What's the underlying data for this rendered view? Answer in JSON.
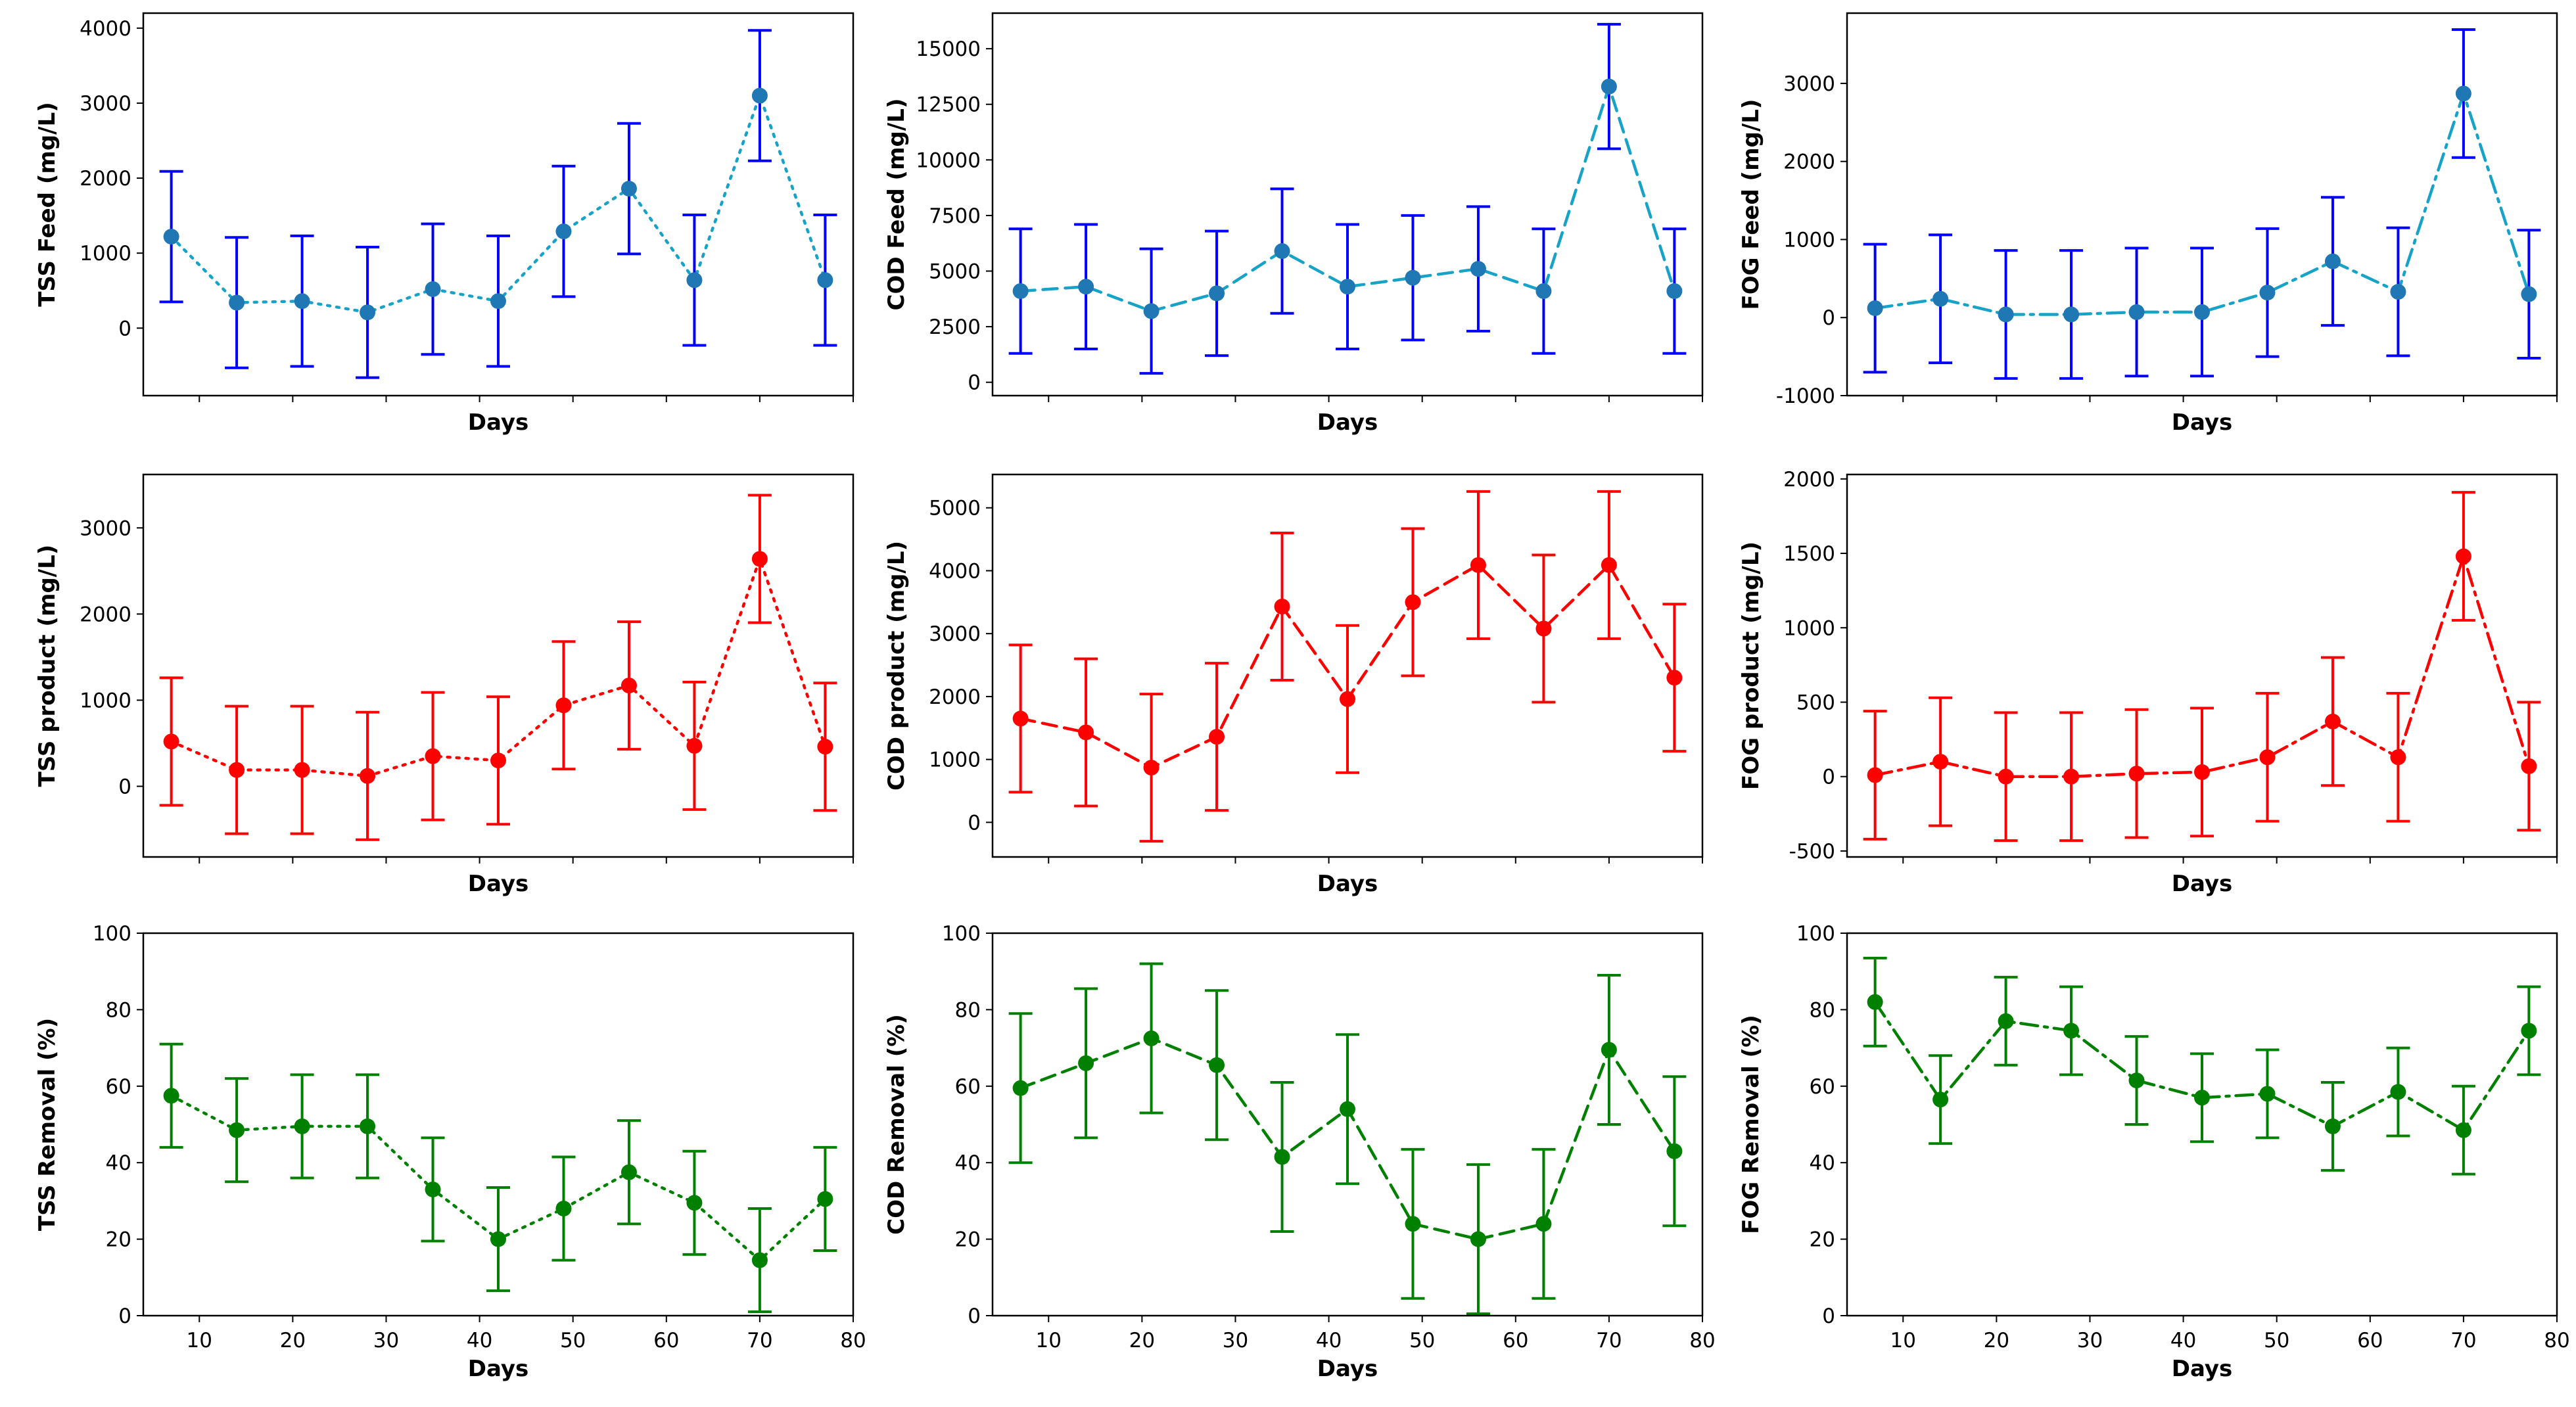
{
  "chart_data": [
    {
      "type": "line",
      "xlabel": "Days",
      "ylabel": "TSS Feed (mg/L)",
      "ylim": [
        -900,
        4200
      ],
      "yticks": [
        0,
        1000,
        2000,
        3000,
        4000
      ],
      "xlim": [
        4,
        80
      ],
      "xticks": [],
      "line_style": "dotted",
      "line_color": "#17a2c8",
      "marker_color": "#1f77b4",
      "errorbar_color": "#0000ff",
      "x": [
        7,
        14,
        21,
        28,
        35,
        42,
        49,
        56,
        63,
        70,
        77
      ],
      "y": [
        1220,
        340,
        360,
        210,
        520,
        360,
        1290,
        1860,
        640,
        3100,
        640
      ],
      "yerr": [
        870,
        870,
        870,
        870,
        870,
        870,
        870,
        870,
        870,
        870,
        870
      ]
    },
    {
      "type": "line",
      "xlabel": "Days",
      "ylabel": "COD Feed (mg/L)",
      "ylim": [
        -600,
        16600
      ],
      "yticks": [
        0,
        2500,
        5000,
        7500,
        10000,
        12500,
        15000
      ],
      "xlim": [
        4,
        80
      ],
      "xticks": [],
      "line_style": "dashed",
      "line_color": "#17a2c8",
      "marker_color": "#1f77b4",
      "errorbar_color": "#0000ff",
      "x": [
        7,
        14,
        21,
        28,
        35,
        42,
        49,
        56,
        63,
        70,
        77
      ],
      "y": [
        4100,
        4300,
        3200,
        4000,
        5900,
        4300,
        4700,
        5100,
        4100,
        13300,
        4100
      ],
      "yerr": [
        2800,
        2800,
        2800,
        2800,
        2800,
        2800,
        2800,
        2800,
        2800,
        2800,
        2800
      ]
    },
    {
      "type": "line",
      "xlabel": "Days",
      "ylabel": "FOG Feed (mg/L)",
      "ylim": [
        -1000,
        3900
      ],
      "yticks": [
        -1000,
        0,
        1000,
        2000,
        3000
      ],
      "xlim": [
        4,
        80
      ],
      "xticks": [],
      "line_style": "dashdot",
      "line_color": "#17a2c8",
      "marker_color": "#1f77b4",
      "errorbar_color": "#0000ff",
      "x": [
        7,
        14,
        21,
        28,
        35,
        42,
        49,
        56,
        63,
        70,
        77
      ],
      "y": [
        120,
        240,
        40,
        40,
        70,
        70,
        320,
        720,
        330,
        2870,
        300
      ],
      "yerr": [
        820,
        820,
        820,
        820,
        820,
        820,
        820,
        820,
        820,
        820,
        820
      ]
    },
    {
      "type": "line",
      "xlabel": "Days",
      "ylabel": "TSS product (mg/L)",
      "ylim": [
        -820,
        3620
      ],
      "yticks": [
        0,
        1000,
        2000,
        3000
      ],
      "xlim": [
        4,
        80
      ],
      "xticks": [],
      "line_style": "dotted",
      "line_color": "#ff0000",
      "marker_color": "#ff0000",
      "errorbar_color": "#ff0000",
      "x": [
        7,
        14,
        21,
        28,
        35,
        42,
        49,
        56,
        63,
        70,
        77
      ],
      "y": [
        520,
        190,
        190,
        120,
        350,
        300,
        940,
        1170,
        470,
        2640,
        460
      ],
      "yerr": [
        740,
        740,
        740,
        740,
        740,
        740,
        740,
        740,
        740,
        740,
        740
      ]
    },
    {
      "type": "line",
      "xlabel": "Days",
      "ylabel": "COD product (mg/L)",
      "ylim": [
        -550,
        5530
      ],
      "yticks": [
        0,
        1000,
        2000,
        3000,
        4000,
        5000
      ],
      "xlim": [
        4,
        80
      ],
      "xticks": [],
      "line_style": "dashed",
      "line_color": "#ff0000",
      "marker_color": "#ff0000",
      "errorbar_color": "#ff0000",
      "x": [
        7,
        14,
        21,
        28,
        35,
        42,
        49,
        56,
        63,
        70,
        77
      ],
      "y": [
        1650,
        1430,
        870,
        1360,
        3430,
        1960,
        3500,
        4090,
        3080,
        4090,
        2300
      ],
      "yerr": [
        1170,
        1170,
        1170,
        1170,
        1170,
        1170,
        1170,
        1170,
        1170,
        1170,
        1170
      ]
    },
    {
      "type": "line",
      "xlabel": "Days",
      "ylabel": "FOG product (mg/L)",
      "ylim": [
        -540,
        2030
      ],
      "yticks": [
        -500,
        0,
        500,
        1000,
        1500,
        2000
      ],
      "xlim": [
        4,
        80
      ],
      "xticks": [],
      "line_style": "dashdot",
      "line_color": "#ff0000",
      "marker_color": "#ff0000",
      "errorbar_color": "#ff0000",
      "x": [
        7,
        14,
        21,
        28,
        35,
        42,
        49,
        56,
        63,
        70,
        77
      ],
      "y": [
        10,
        100,
        0,
        0,
        20,
        30,
        130,
        370,
        130,
        1480,
        70
      ],
      "yerr": [
        430,
        430,
        430,
        430,
        430,
        430,
        430,
        430,
        430,
        430,
        430
      ]
    },
    {
      "type": "line",
      "xlabel": "Days",
      "ylabel": "TSS Removal (%)",
      "ylim": [
        0,
        100
      ],
      "yticks": [
        0,
        20,
        40,
        60,
        80,
        100
      ],
      "xlim": [
        4,
        80
      ],
      "xticks": [
        10,
        20,
        30,
        40,
        50,
        60,
        70,
        80
      ],
      "line_style": "dotted",
      "line_color": "#008000",
      "marker_color": "#008000",
      "errorbar_color": "#008000",
      "x": [
        7,
        14,
        21,
        28,
        35,
        42,
        49,
        56,
        63,
        70,
        77
      ],
      "y": [
        57.5,
        48.5,
        49.5,
        49.5,
        33,
        20,
        28,
        37.5,
        29.5,
        14.5,
        30.5
      ],
      "yerr": [
        13.5,
        13.5,
        13.5,
        13.5,
        13.5,
        13.5,
        13.5,
        13.5,
        13.5,
        13.5,
        13.5
      ]
    },
    {
      "type": "line",
      "xlabel": "Days",
      "ylabel": "COD Removal (%)",
      "ylim": [
        0,
        100
      ],
      "yticks": [
        0,
        20,
        40,
        60,
        80,
        100
      ],
      "xlim": [
        4,
        80
      ],
      "xticks": [
        10,
        20,
        30,
        40,
        50,
        60,
        70,
        80
      ],
      "line_style": "dashed",
      "line_color": "#008000",
      "marker_color": "#008000",
      "errorbar_color": "#008000",
      "x": [
        7,
        14,
        21,
        28,
        35,
        42,
        49,
        56,
        63,
        70,
        77
      ],
      "y": [
        59.5,
        66,
        72.5,
        65.5,
        41.5,
        54,
        24,
        20,
        24,
        69.5,
        43
      ],
      "yerr": [
        19.5,
        19.5,
        19.5,
        19.5,
        19.5,
        19.5,
        19.5,
        19.5,
        19.5,
        19.5,
        19.5
      ]
    },
    {
      "type": "line",
      "xlabel": "Days",
      "ylabel": "FOG Removal (%)",
      "ylim": [
        0,
        100
      ],
      "yticks": [
        0,
        20,
        40,
        60,
        80,
        100
      ],
      "xlim": [
        4,
        80
      ],
      "xticks": [
        10,
        20,
        30,
        40,
        50,
        60,
        70,
        80
      ],
      "line_style": "dashdot",
      "line_color": "#008000",
      "marker_color": "#008000",
      "errorbar_color": "#008000",
      "x": [
        7,
        14,
        21,
        28,
        35,
        42,
        49,
        56,
        63,
        70,
        77
      ],
      "y": [
        82,
        56.5,
        77,
        74.5,
        61.5,
        57,
        58,
        49.5,
        58.5,
        48.5,
        74.5
      ],
      "yerr": [
        11.5,
        11.5,
        11.5,
        11.5,
        11.5,
        11.5,
        11.5,
        11.5,
        11.5,
        11.5,
        11.5
      ]
    }
  ]
}
